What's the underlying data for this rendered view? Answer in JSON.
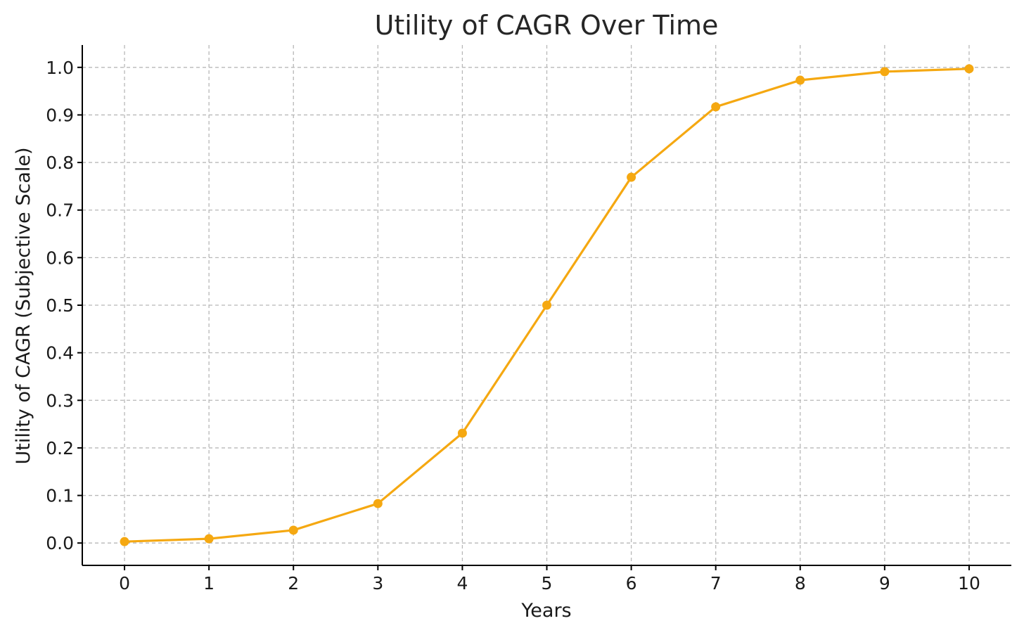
{
  "chart_data": {
    "type": "line",
    "title": "Utility of CAGR Over Time",
    "xlabel": "Years",
    "ylabel": "Utility of CAGR (Subjective Scale)",
    "xlim": [
      -0.5,
      10.5
    ],
    "ylim": [
      -0.047,
      1.047
    ],
    "xticks": [
      0,
      1,
      2,
      3,
      4,
      5,
      6,
      7,
      8,
      9,
      10
    ],
    "xtick_labels": [
      "0",
      "1",
      "2",
      "3",
      "4",
      "5",
      "6",
      "7",
      "8",
      "9",
      "10"
    ],
    "yticks": [
      0.0,
      0.1,
      0.2,
      0.3,
      0.4,
      0.5,
      0.6,
      0.7,
      0.8,
      0.9,
      1.0
    ],
    "ytick_labels": [
      "0.0",
      "0.1",
      "0.2",
      "0.3",
      "0.4",
      "0.5",
      "0.6",
      "0.7",
      "0.8",
      "0.9",
      "1.0"
    ],
    "grid": true,
    "color": "#f5a811",
    "series": [
      {
        "x": [
          0,
          1,
          2,
          3,
          4,
          5,
          6,
          7,
          8,
          9,
          10
        ],
        "values": [
          0.003,
          0.009,
          0.027,
          0.083,
          0.231,
          0.5,
          0.769,
          0.917,
          0.973,
          0.991,
          0.997
        ]
      }
    ]
  }
}
